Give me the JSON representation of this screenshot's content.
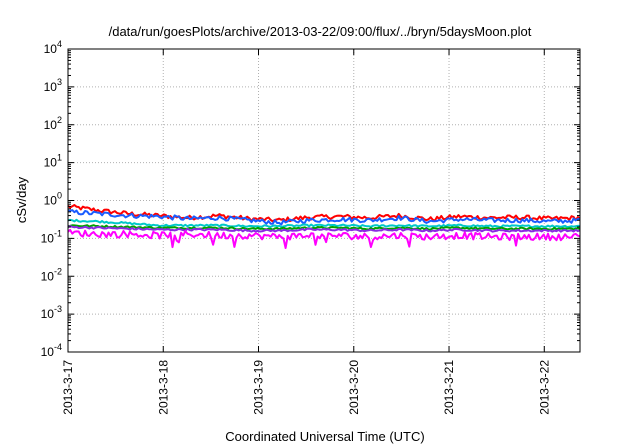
{
  "chart_data": {
    "type": "line",
    "title": "/data/run/goesPlots/archive/2013-03-22/09:00/flux/../bryn/5daysMoon.plot",
    "xlabel": "Coordinated Universal Time (UTC)",
    "ylabel": "cSv/day",
    "x_range": [
      "2013-03-17 00:00",
      "2013-03-22 09:00"
    ],
    "x_tick_labels": [
      "2013-3-17",
      "2013-3-18",
      "2013-3-19",
      "2013-3-20",
      "2013-3-21",
      "2013-3-22"
    ],
    "y_scale": "log",
    "ylim": [
      0.0001,
      10000
    ],
    "y_tick_labels": [
      {
        "base": "10",
        "exp": "4"
      },
      {
        "base": "10",
        "exp": "3"
      },
      {
        "base": "10",
        "exp": "2"
      },
      {
        "base": "10",
        "exp": "1"
      },
      {
        "base": "10",
        "exp": "0"
      },
      {
        "base": "10",
        "exp": "-1"
      },
      {
        "base": "10",
        "exp": "-2"
      },
      {
        "base": "10",
        "exp": "-3"
      },
      {
        "base": "10",
        "exp": "-4"
      }
    ],
    "grid": true,
    "legend": "none",
    "series": [
      {
        "color": "#ff0000",
        "values": [
          0.7,
          0.55,
          0.45,
          0.4,
          0.35,
          0.4,
          0.33,
          0.3,
          0.36,
          0.38,
          0.35,
          0.4,
          0.32,
          0.38,
          0.35,
          0.36,
          0.33,
          0.35
        ]
      },
      {
        "color": "#1a5cff",
        "values": [
          0.5,
          0.45,
          0.4,
          0.38,
          0.33,
          0.35,
          0.3,
          0.26,
          0.3,
          0.32,
          0.3,
          0.35,
          0.28,
          0.32,
          0.3,
          0.3,
          0.28,
          0.3
        ]
      },
      {
        "color": "#00c8c8",
        "values": [
          0.3,
          0.28,
          0.25,
          0.22,
          0.22,
          0.22,
          0.21,
          0.21,
          0.22,
          0.22,
          0.21,
          0.22,
          0.21,
          0.22,
          0.21,
          0.21,
          0.21,
          0.21
        ]
      },
      {
        "color": "#00a000",
        "values": [
          0.22,
          0.21,
          0.2,
          0.19,
          0.19,
          0.19,
          0.18,
          0.18,
          0.19,
          0.19,
          0.18,
          0.19,
          0.18,
          0.19,
          0.18,
          0.18,
          0.18,
          0.18
        ]
      },
      {
        "color": "#8a2be2",
        "values": [
          0.2,
          0.19,
          0.18,
          0.17,
          0.17,
          0.17,
          0.16,
          0.16,
          0.17,
          0.17,
          0.16,
          0.17,
          0.16,
          0.17,
          0.16,
          0.16,
          0.16,
          0.16
        ]
      },
      {
        "color": "#ff00ff",
        "values": [
          0.14,
          0.13,
          0.13,
          0.12,
          0.13,
          0.12,
          0.12,
          0.11,
          0.12,
          0.12,
          0.11,
          0.12,
          0.11,
          0.12,
          0.11,
          0.11,
          0.11,
          0.11
        ]
      }
    ]
  }
}
